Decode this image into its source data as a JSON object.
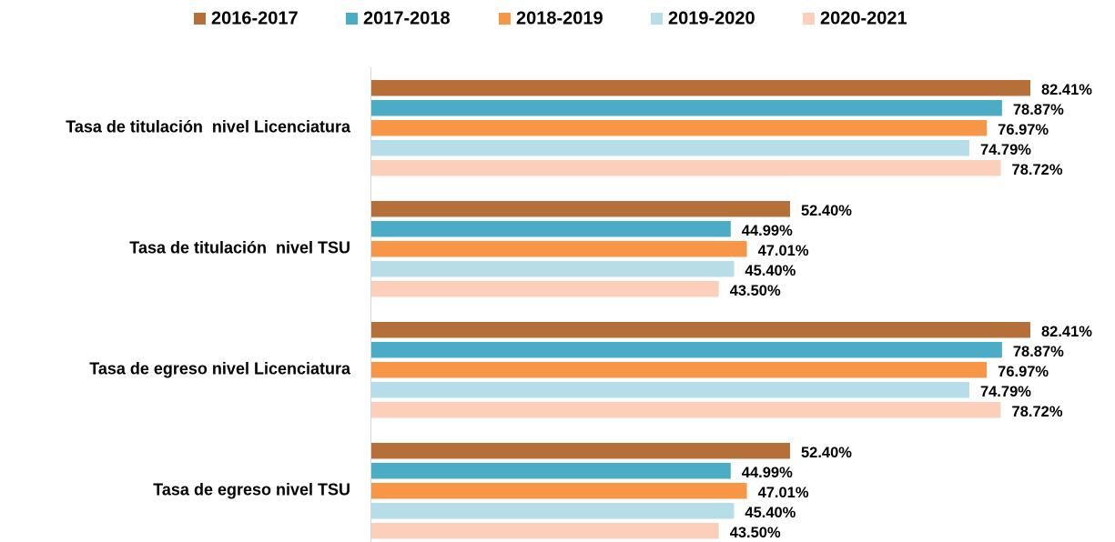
{
  "chart_data": {
    "type": "hbar",
    "categories": [
      "Tasa de titulación  nivel Licenciatura",
      "Tasa de titulación  nivel TSU",
      "Tasa de egreso nivel Licenciatura",
      "Tasa de egreso nivel TSU"
    ],
    "series": [
      {
        "name": "2016-2017",
        "color": "#b5703a",
        "values": [
          82.41,
          52.4,
          82.41,
          52.4
        ],
        "value_labels": [
          "82.41%",
          "52.40%",
          "82.41%",
          "52.40%"
        ]
      },
      {
        "name": "2017-2018",
        "color": "#4bacc6",
        "values": [
          78.87,
          44.99,
          78.87,
          44.99
        ],
        "value_labels": [
          "78.87%",
          "44.99%",
          "78.87%",
          "44.99%"
        ]
      },
      {
        "name": "2018-2019",
        "color": "#f79646",
        "values": [
          76.97,
          47.01,
          76.97,
          47.01
        ],
        "value_labels": [
          "76.97%",
          "47.01%",
          "76.97%",
          "47.01%"
        ]
      },
      {
        "name": "2019-2020",
        "color": "#b7dde8",
        "values": [
          74.79,
          45.4,
          74.79,
          45.4
        ],
        "value_labels": [
          "74.79%",
          "45.40%",
          "74.79%",
          "45.40%"
        ]
      },
      {
        "name": "2020-2021",
        "color": "#fbcfb9",
        "values": [
          78.72,
          43.5,
          78.72,
          43.5
        ],
        "value_labels": [
          "78.72%",
          "43.50%",
          "78.72%",
          "43.50%"
        ]
      }
    ],
    "legend": "top"
  }
}
